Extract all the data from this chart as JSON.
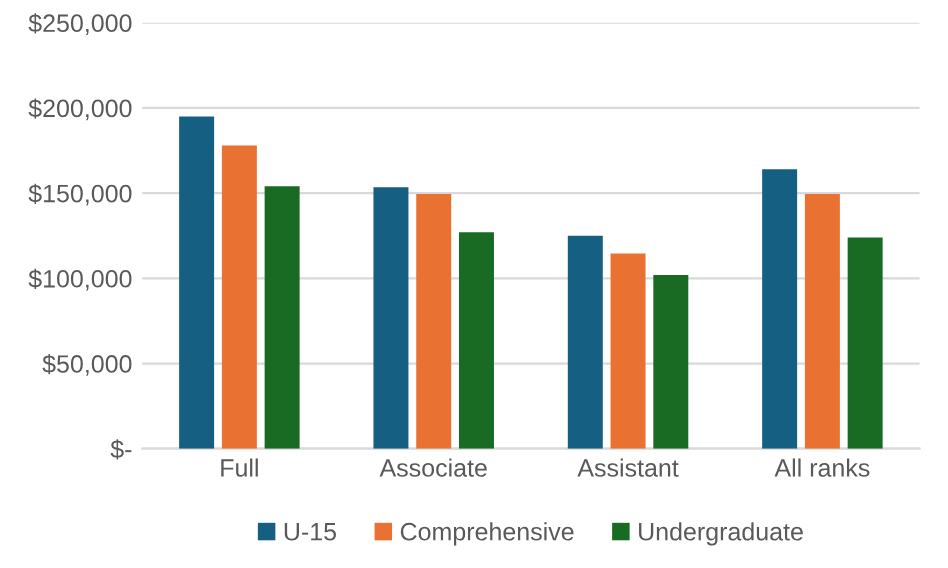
{
  "chart_data": {
    "type": "bar",
    "categories": [
      "Full",
      "Associate",
      "Assistant",
      "All ranks"
    ],
    "series": [
      {
        "name": "U-15",
        "color": "#156082",
        "values": [
          195000,
          153500,
          125000,
          164000
        ]
      },
      {
        "name": "Comprehensive",
        "color": "#e97132",
        "values": [
          178000,
          149500,
          114500,
          149500
        ]
      },
      {
        "name": "Undergraduate",
        "color": "#196b24",
        "values": [
          154000,
          127000,
          102000,
          124000
        ]
      }
    ],
    "ylim": [
      0,
      250000
    ],
    "yticks": [
      {
        "value": 0,
        "label": "$-"
      },
      {
        "value": 50000,
        "label": "$50,000"
      },
      {
        "value": 100000,
        "label": "$100,000"
      },
      {
        "value": 150000,
        "label": "$150,000"
      },
      {
        "value": 200000,
        "label": "$200,000"
      },
      {
        "value": 250000,
        "label": "$250,000"
      }
    ],
    "grid": "y",
    "legend": "bottom"
  }
}
